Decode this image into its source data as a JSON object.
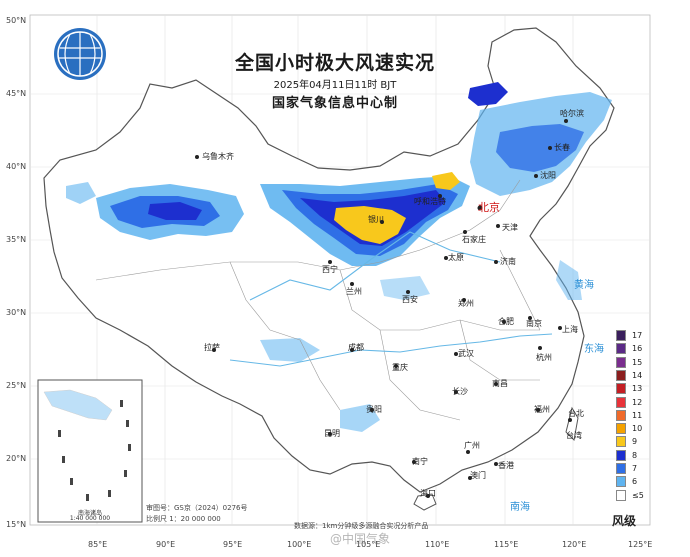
{
  "title": "全国小时极大风速实况",
  "datetime": "2025年04月11日11时 BJT",
  "issuer": "国家气象信息中心制",
  "lat_labels": [
    "50°N",
    "45°N",
    "40°N",
    "35°N",
    "30°N",
    "25°N",
    "20°N",
    "15°N"
  ],
  "lon_labels": [
    "85°E",
    "90°E",
    "95°E",
    "100°E",
    "105°E",
    "110°E",
    "115°E",
    "120°E",
    "125°E"
  ],
  "cities": [
    "乌鲁木齐",
    "哈尔滨",
    "长春",
    "沈阳",
    "呼和浩特",
    "北京",
    "天津",
    "石家庄",
    "济南",
    "太原",
    "银川",
    "西宁",
    "兰州",
    "西安",
    "郑州",
    "合肥",
    "南京",
    "上海",
    "杭州",
    "拉萨",
    "成都",
    "重庆",
    "武汉",
    "长沙",
    "南昌",
    "福州",
    "台北",
    "贵阳",
    "昆明",
    "南宁",
    "广州",
    "香港",
    "澳门",
    "海口",
    "台湾"
  ],
  "sea_labels": [
    "黄海",
    "东海",
    "南海"
  ],
  "legend": {
    "title": "风级",
    "items": [
      {
        "label": "17",
        "color": "#3a1f5c"
      },
      {
        "label": "16",
        "color": "#5b2a86"
      },
      {
        "label": "15",
        "color": "#7a2e8e"
      },
      {
        "label": "14",
        "color": "#8b1e1e"
      },
      {
        "label": "13",
        "color": "#c41e24"
      },
      {
        "label": "12",
        "color": "#e8333a"
      },
      {
        "label": "11",
        "color": "#f06a2a"
      },
      {
        "label": "10",
        "color": "#f5a200"
      },
      {
        "label": "9",
        "color": "#f8c81c"
      },
      {
        "label": "8",
        "color": "#1d2fcf"
      },
      {
        "label": "7",
        "color": "#2f6fe6"
      },
      {
        "label": "6",
        "color": "#5fb4f0"
      },
      {
        "label": "≤5",
        "color": "#ffffff"
      }
    ]
  },
  "inset": {
    "title": "南海诸岛",
    "scale": "1:40 000 000"
  },
  "approval": "审图号：GS京（2024）0276号",
  "scale": "比例尺 1：20 000 000",
  "data_note": "数据源：1km分钟级多源融合实况分析产品",
  "watermark": "@中国气象"
}
